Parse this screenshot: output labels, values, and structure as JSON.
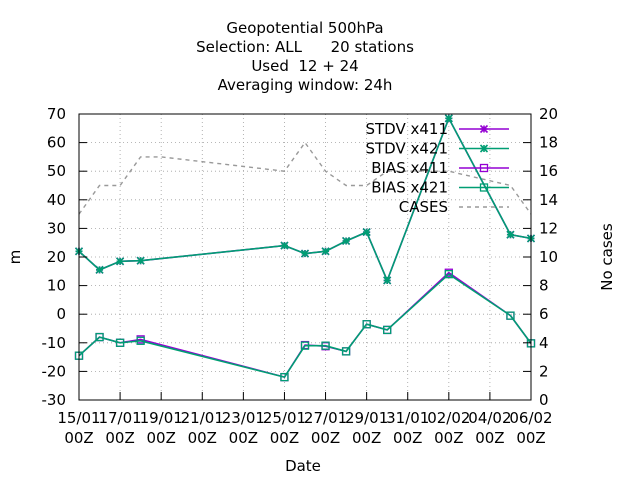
{
  "chart_data": {
    "type": "line",
    "title_lines": [
      "Geopotential 500hPa",
      "Selection: ALL      20 stations",
      "Used  12 + 24",
      "Averaging window: 24h"
    ],
    "xlabel": "Date",
    "ylabel": "m",
    "y2label": "No cases",
    "xlim": [
      "2024-01-15T00",
      "2024-02-06T00"
    ],
    "ylim": [
      -30,
      70
    ],
    "y2lim": [
      0,
      20
    ],
    "grid": true,
    "legend_position": "top-right",
    "x_ticks": [
      {
        "day": 0,
        "label1": "15/01",
        "label2": "00Z"
      },
      {
        "day": 2,
        "label1": "17/01",
        "label2": "00Z"
      },
      {
        "day": 4,
        "label1": "19/01",
        "label2": "00Z"
      },
      {
        "day": 6,
        "label1": "21/01",
        "label2": "00Z"
      },
      {
        "day": 8,
        "label1": "23/01",
        "label2": "00Z"
      },
      {
        "day": 10,
        "label1": "25/01",
        "label2": "00Z"
      },
      {
        "day": 12,
        "label1": "27/01",
        "label2": "00Z"
      },
      {
        "day": 14,
        "label1": "29/01",
        "label2": "00Z"
      },
      {
        "day": 16,
        "label1": "31/01",
        "label2": "00Z"
      },
      {
        "day": 18,
        "label1": "02/02",
        "label2": "00Z"
      },
      {
        "day": 20,
        "label1": "04/02",
        "label2": "00Z"
      },
      {
        "day": 22,
        "label1": "06/02",
        "label2": "00Z"
      }
    ],
    "y_ticks": [
      -30,
      -20,
      -10,
      0,
      10,
      20,
      30,
      40,
      50,
      60,
      70
    ],
    "y2_ticks": [
      0,
      2,
      4,
      6,
      8,
      10,
      12,
      14,
      16,
      18,
      20
    ],
    "series": [
      {
        "name": "STDV x411",
        "axis": "y",
        "color": "#9400d3",
        "marker": "star",
        "dash": false,
        "points": [
          [
            0,
            22
          ],
          [
            1,
            15.5
          ],
          [
            2,
            18.5
          ],
          [
            3,
            18.7
          ],
          [
            10,
            24
          ],
          [
            11,
            21.2
          ],
          [
            12,
            22
          ],
          [
            13,
            25.6
          ],
          [
            14,
            28.7
          ],
          [
            15,
            11.8
          ],
          [
            18,
            68.5
          ],
          [
            21,
            27.8
          ],
          [
            22,
            26.5
          ]
        ]
      },
      {
        "name": "STDV x421",
        "axis": "y",
        "color": "#009e73",
        "marker": "star",
        "dash": false,
        "points": [
          [
            0,
            22
          ],
          [
            1,
            15.5
          ],
          [
            2,
            18.5
          ],
          [
            3,
            18.7
          ],
          [
            10,
            24
          ],
          [
            11,
            21.2
          ],
          [
            12,
            22
          ],
          [
            13,
            25.6
          ],
          [
            14,
            28.7
          ],
          [
            15,
            11.8
          ],
          [
            18,
            68.5
          ],
          [
            21,
            27.8
          ],
          [
            22,
            26.5
          ]
        ]
      },
      {
        "name": "BIAS x411",
        "axis": "y",
        "color": "#9400d3",
        "marker": "square",
        "dash": false,
        "points": [
          [
            0,
            -14.5
          ],
          [
            1,
            -8
          ],
          [
            2,
            -10
          ],
          [
            3,
            -8.8
          ],
          [
            10,
            -22
          ],
          [
            11,
            -10.8
          ],
          [
            12,
            -11.2
          ],
          [
            13,
            -13
          ],
          [
            14,
            -3.5
          ],
          [
            15,
            -5.5
          ],
          [
            18,
            14.5
          ],
          [
            21,
            -0.5
          ],
          [
            22,
            -10.2
          ]
        ]
      },
      {
        "name": "BIAS x421",
        "axis": "y",
        "color": "#009e73",
        "marker": "square",
        "dash": false,
        "points": [
          [
            0,
            -14.5
          ],
          [
            1,
            -8
          ],
          [
            2,
            -10
          ],
          [
            3,
            -9.3
          ],
          [
            10,
            -22
          ],
          [
            11,
            -11
          ],
          [
            12,
            -11
          ],
          [
            13,
            -13
          ],
          [
            14,
            -3.5
          ],
          [
            15,
            -5.5
          ],
          [
            18,
            14
          ],
          [
            21,
            -0.5
          ],
          [
            22,
            -10.2
          ]
        ]
      },
      {
        "name": "CASES",
        "axis": "y2",
        "color": "#999999",
        "marker": "none",
        "dash": true,
        "points": [
          [
            0,
            13
          ],
          [
            1,
            15
          ],
          [
            2,
            15
          ],
          [
            3,
            17
          ],
          [
            4,
            17
          ],
          [
            10,
            16
          ],
          [
            11,
            18
          ],
          [
            12,
            16
          ],
          [
            13,
            15
          ],
          [
            14,
            15
          ],
          [
            15,
            16
          ],
          [
            18,
            16
          ],
          [
            21,
            15
          ],
          [
            22,
            13
          ]
        ]
      }
    ]
  }
}
